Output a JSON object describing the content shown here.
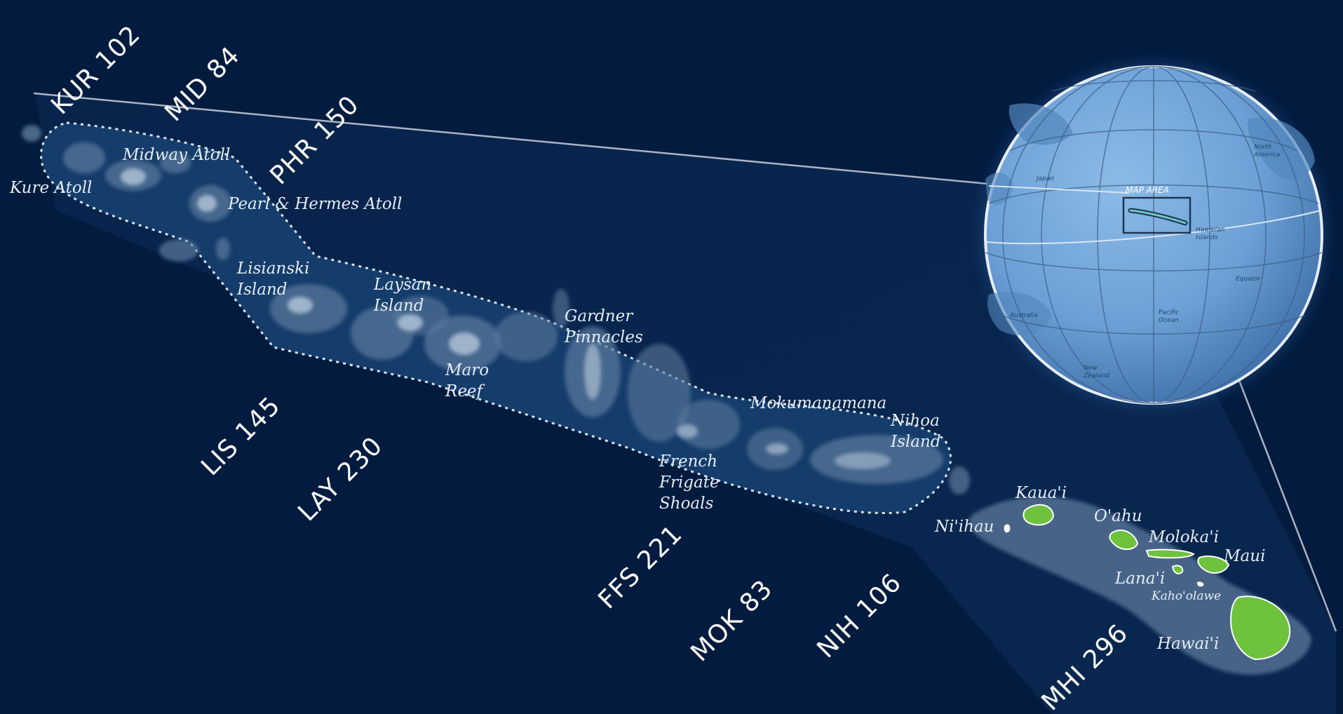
{
  "map": {
    "island_labels": {
      "kure": "Kure Atoll",
      "midway": "Midway Atoll",
      "pearl_hermes": "Pearl & Hermes Atoll",
      "lisianski_1": "Lisianski",
      "lisianski_2": "Island",
      "laysan_1": "Laysan",
      "laysan_2": "Island",
      "maro_1": "Maro",
      "maro_2": "Reef",
      "gardner_1": "Gardner",
      "gardner_2": "Pinnacles",
      "mokumanamana": "Mokumanamana",
      "nihoa_1": "Nihoa",
      "nihoa_2": "Island",
      "french_frigate_1": "French",
      "french_frigate_2": "Frigate",
      "french_frigate_3": "Shoals",
      "niihau": "Ni'ihau",
      "kauai": "Kaua'i",
      "oahu": "O'ahu",
      "molokai": "Moloka'i",
      "maui": "Maui",
      "lanai": "Lana'i",
      "kahoolawe": "Kaho'olawe",
      "hawaii": "Hawai'i"
    },
    "site_labels": {
      "kur": "KUR 102",
      "mid": "MID 84",
      "phr": "PHR 150",
      "lis": "LIS 145",
      "lay": "LAY 230",
      "ffs": "FFS 221",
      "mok": "MOK 83",
      "nih": "NIH 106",
      "mhi": "MHI 296"
    },
    "globe_labels": {
      "map_area": "MAP AREA",
      "japan": "Japan",
      "north_america_1": "North",
      "north_america_2": "America",
      "hawaiian_islands_1": "Hawaiian",
      "hawaiian_islands_2": "Islands",
      "equator": "Equator",
      "australia": "Australia",
      "pacific_ocean_1": "Pacific",
      "pacific_ocean_2": "Ocean",
      "new_zealand_1": "New",
      "new_zealand_2": "Zealand"
    },
    "colors": {
      "ocean_background": "#031b3f",
      "monument_fill": "#1b3f6c",
      "shallow": "#5b7a9c",
      "reef": "#9fb4cb",
      "main_island_land": "#6fc23c",
      "globe_ocean": "#6fa2d9",
      "globe_land": "#5387bd"
    }
  }
}
